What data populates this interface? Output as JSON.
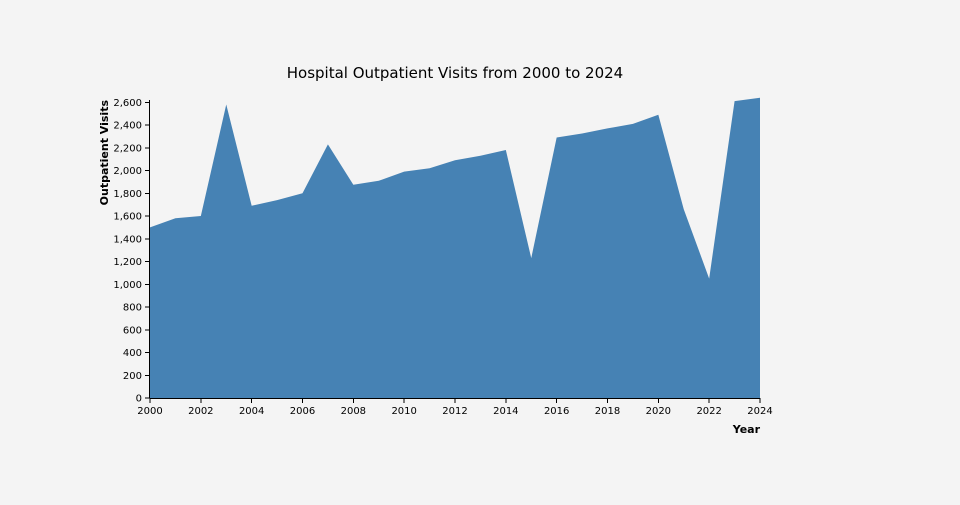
{
  "chart_data": {
    "type": "area",
    "title": "Hospital Outpatient Visits from 2000 to 2024",
    "xlabel": "Year",
    "ylabel": "Outpatient Visits",
    "xlim": [
      2000,
      2024
    ],
    "ylim": [
      0,
      2620
    ],
    "x_ticks": [
      2000,
      2002,
      2004,
      2006,
      2008,
      2010,
      2012,
      2014,
      2016,
      2018,
      2020,
      2022,
      2024
    ],
    "x_tick_labels": [
      "2000",
      "2002",
      "2004",
      "2006",
      "2008",
      "2010",
      "2012",
      "2014",
      "2016",
      "2018",
      "2020",
      "2022",
      "2024"
    ],
    "y_ticks": [
      0,
      200,
      400,
      600,
      800,
      1000,
      1200,
      1400,
      1600,
      1800,
      2000,
      2200,
      2400,
      2600
    ],
    "y_tick_labels": [
      "0",
      "200",
      "400",
      "600",
      "800",
      "1,000",
      "1,200",
      "1,400",
      "1,600",
      "1,800",
      "2,000",
      "2,200",
      "2,400",
      "2,600"
    ],
    "grid": false,
    "legend": "none",
    "series": [
      {
        "color": "#4682b4",
        "x": [
          2000,
          2001,
          2002,
          2003,
          2004,
          2005,
          2006,
          2007,
          2008,
          2009,
          2010,
          2011,
          2012,
          2013,
          2014,
          2015,
          2016,
          2017,
          2018,
          2019,
          2020,
          2021,
          2022,
          2023,
          2024
        ],
        "values": [
          1500,
          1580,
          1600,
          2580,
          1690,
          1740,
          1800,
          2230,
          1875,
          1910,
          1990,
          2020,
          2090,
          2130,
          2180,
          1230,
          2290,
          2325,
          2370,
          2410,
          2490,
          1660,
          1050,
          2610,
          2640
        ]
      }
    ]
  }
}
